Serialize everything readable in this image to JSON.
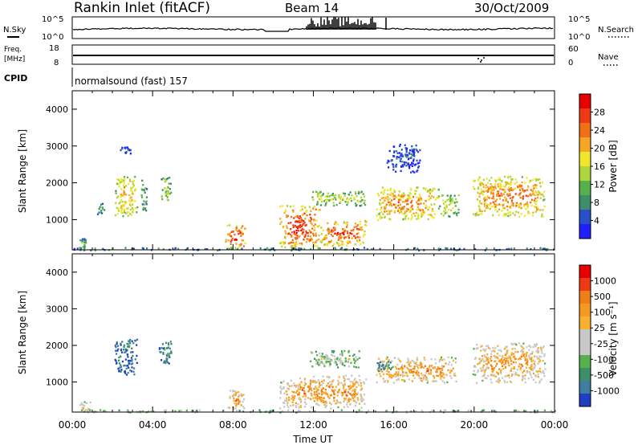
{
  "header": {
    "station": "Rankin Inlet (fitACF)",
    "beam": "Beam 14",
    "date": "30/Oct/2009"
  },
  "top_panels": {
    "nsky_label": "N.Sky",
    "nsky_ticks": [
      "10^5",
      "10^0"
    ],
    "nsearch_label": "N.Search",
    "nsearch_ticks": [
      "10^5",
      "10^0"
    ],
    "freq_label_1": "Freq.",
    "freq_label_2": "[MHz]",
    "freq_ticks": [
      "18",
      "8"
    ],
    "nave_label": "Nave",
    "nave_ticks": [
      "60",
      "0"
    ],
    "cpid_label": "CPID",
    "cpid_text": "normalsound (fast) 157"
  },
  "chart_data": [
    {
      "type": "heatmap",
      "title": "",
      "ylabel": "Slant Range [km]",
      "xlabel": "",
      "ylim": [
        180,
        4500
      ],
      "y_ticks": [
        "1000",
        "2000",
        "3000",
        "4000"
      ],
      "x_range_hours": [
        0,
        24
      ],
      "colorbar_label": "Power [dB]",
      "colorbar_ticks": [
        "28",
        "24",
        "20",
        "16",
        "12",
        "8",
        "4"
      ],
      "colors": [
        "#1f1fff",
        "#2850c8",
        "#3e8e6a",
        "#58b04c",
        "#aed63a",
        "#f2e62a",
        "#f5a623",
        "#f07018",
        "#ee3a14",
        "#e60000"
      ],
      "regions": [
        {
          "t0": 0.3,
          "t1": 0.7,
          "r0": 250,
          "r1": 500,
          "level": 0.35
        },
        {
          "t0": 1.2,
          "t1": 1.6,
          "r0": 1150,
          "r1": 1500,
          "level": 0.3
        },
        {
          "t0": 2.1,
          "t1": 3.2,
          "r0": 1100,
          "r1": 2200,
          "level": 0.65
        },
        {
          "t0": 3.4,
          "t1": 3.7,
          "r0": 1200,
          "r1": 2100,
          "level": 0.4
        },
        {
          "t0": 4.4,
          "t1": 4.9,
          "r0": 1500,
          "r1": 2200,
          "level": 0.45
        },
        {
          "t0": 2.3,
          "t1": 2.9,
          "r0": 2800,
          "r1": 3000,
          "level": 0.2
        },
        {
          "t0": 7.6,
          "t1": 8.6,
          "r0": 250,
          "r1": 900,
          "level": 0.95
        },
        {
          "t0": 10.3,
          "t1": 12.3,
          "r0": 250,
          "r1": 1400,
          "level": 0.92
        },
        {
          "t0": 12.3,
          "t1": 14.6,
          "r0": 300,
          "r1": 1000,
          "level": 0.85
        },
        {
          "t0": 11.8,
          "t1": 14.6,
          "r0": 1400,
          "r1": 1800,
          "level": 0.5
        },
        {
          "t0": 15.1,
          "t1": 18.2,
          "r0": 1000,
          "r1": 1900,
          "level": 0.75
        },
        {
          "t0": 18.2,
          "t1": 19.2,
          "r0": 1100,
          "r1": 1700,
          "level": 0.55
        },
        {
          "t0": 19.9,
          "t1": 23.5,
          "r0": 1100,
          "r1": 2200,
          "level": 0.78
        },
        {
          "t0": 15.6,
          "t1": 17.3,
          "r0": 2300,
          "r1": 3100,
          "level": 0.15
        },
        {
          "t0": 0,
          "t1": 24,
          "r0": 190,
          "r1": 260,
          "level": 0.3
        }
      ]
    },
    {
      "type": "heatmap",
      "title": "",
      "ylabel": "Slant Range [km]",
      "xlabel": "Time UT",
      "ylim": [
        180,
        4500
      ],
      "y_ticks": [
        "1000",
        "2000",
        "3000",
        "4000"
      ],
      "x_ticks": [
        "00:00",
        "04:00",
        "08:00",
        "12:00",
        "16:00",
        "20:00",
        "00:00"
      ],
      "x_range_hours": [
        0,
        24
      ],
      "colorbar_label": "Velocity [m s⁻¹]",
      "colorbar_ticks": [
        "1000",
        "500",
        "100",
        "25",
        "-25",
        "-100",
        "-500",
        "-1000"
      ],
      "colors": [
        "#1f3fc0",
        "#3f7ea0",
        "#3e8e6a",
        "#58b04c",
        "#c8c8c8",
        "#c8c8c8",
        "#f7b030",
        "#f59a20",
        "#f07e18",
        "#ee3a14",
        "#e60000"
      ],
      "regions": [
        {
          "t0": 0.3,
          "t1": 0.9,
          "r0": 220,
          "r1": 500,
          "level": 0.6
        },
        {
          "t0": 2.1,
          "t1": 3.2,
          "r0": 1200,
          "r1": 2200,
          "level": 0.15
        },
        {
          "t0": 4.3,
          "t1": 4.9,
          "r0": 1500,
          "r1": 2200,
          "level": 0.2
        },
        {
          "t0": 7.7,
          "t1": 8.6,
          "r0": 250,
          "r1": 800,
          "level": 0.75
        },
        {
          "t0": 10.3,
          "t1": 14.6,
          "r0": 300,
          "r1": 1200,
          "level": 0.75
        },
        {
          "t0": 11.8,
          "t1": 14.3,
          "r0": 1400,
          "r1": 1900,
          "level": 0.45
        },
        {
          "t0": 15.1,
          "t1": 19.1,
          "r0": 1000,
          "r1": 1700,
          "level": 0.72
        },
        {
          "t0": 19.9,
          "t1": 23.5,
          "r0": 1000,
          "r1": 2100,
          "level": 0.72
        },
        {
          "t0": 15.1,
          "t1": 16.0,
          "r0": 1300,
          "r1": 1600,
          "level": 0.25
        },
        {
          "t0": 0,
          "t1": 24,
          "r0": 190,
          "r1": 260,
          "level": 0.5
        }
      ]
    }
  ]
}
